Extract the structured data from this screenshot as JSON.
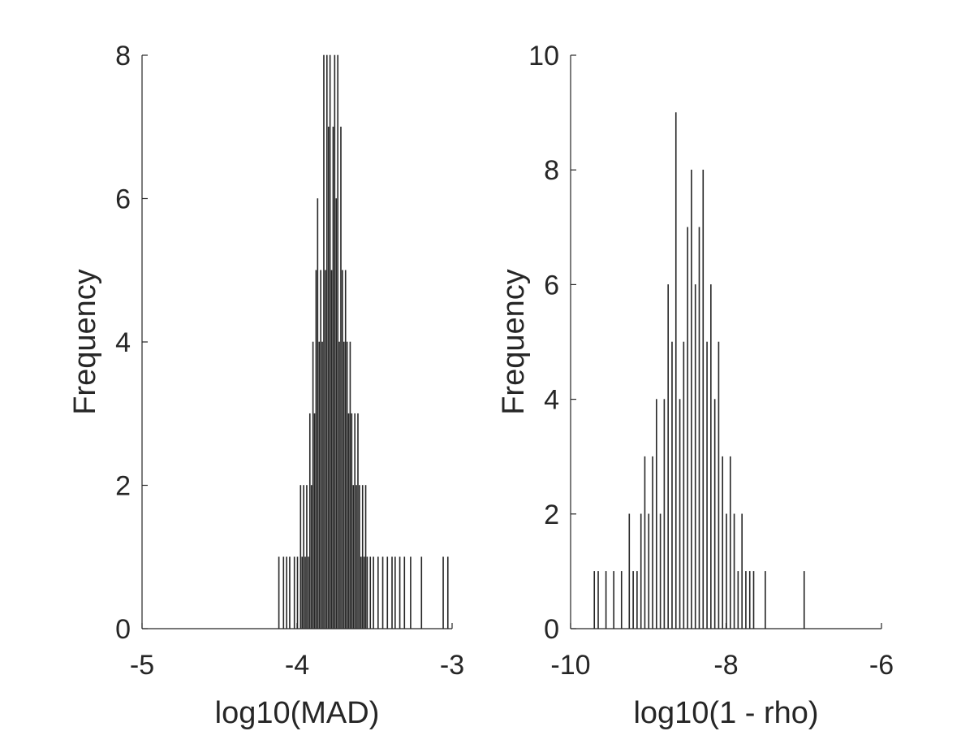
{
  "chart_data": [
    {
      "type": "histogram",
      "xlabel": "log10(MAD)",
      "ylabel": "Frequency",
      "xlim": [
        -5,
        -3
      ],
      "ylim": [
        0,
        8
      ],
      "xticks": [
        -5,
        -4,
        -3
      ],
      "yticks": [
        0,
        2,
        4,
        6,
        8
      ],
      "xtick_labels": [
        "-5",
        "-4",
        "-3"
      ],
      "ytick_labels": [
        "0",
        "2",
        "4",
        "6",
        "8"
      ],
      "bar_color": "#262626",
      "bin_width": 0.0017,
      "bins": [
        [
          -4.12,
          1
        ],
        [
          -4.09,
          1
        ],
        [
          -4.07,
          1
        ],
        [
          -4.05,
          1
        ],
        [
          -4.02,
          1
        ],
        [
          -4.0,
          1
        ],
        [
          -3.98,
          2
        ],
        [
          -3.97,
          1
        ],
        [
          -3.96,
          2
        ],
        [
          -3.95,
          1
        ],
        [
          -3.94,
          2
        ],
        [
          -3.93,
          1
        ],
        [
          -3.92,
          3
        ],
        [
          -3.91,
          2
        ],
        [
          -3.9,
          4
        ],
        [
          -3.89,
          3
        ],
        [
          -3.88,
          5
        ],
        [
          -3.87,
          6
        ],
        [
          -3.86,
          4
        ],
        [
          -3.85,
          5
        ],
        [
          -3.84,
          4
        ],
        [
          -3.83,
          8
        ],
        [
          -3.82,
          5
        ],
        [
          -3.81,
          8
        ],
        [
          -3.8,
          7
        ],
        [
          -3.79,
          8
        ],
        [
          -3.78,
          5
        ],
        [
          -3.77,
          7
        ],
        [
          -3.76,
          8
        ],
        [
          -3.75,
          6
        ],
        [
          -3.74,
          8
        ],
        [
          -3.73,
          4
        ],
        [
          -3.72,
          7
        ],
        [
          -3.71,
          5
        ],
        [
          -3.7,
          4
        ],
        [
          -3.69,
          5
        ],
        [
          -3.68,
          4
        ],
        [
          -3.67,
          3
        ],
        [
          -3.66,
          4
        ],
        [
          -3.65,
          3
        ],
        [
          -3.64,
          2
        ],
        [
          -3.63,
          3
        ],
        [
          -3.62,
          2
        ],
        [
          -3.61,
          3
        ],
        [
          -3.6,
          2
        ],
        [
          -3.59,
          1
        ],
        [
          -3.58,
          2
        ],
        [
          -3.57,
          1
        ],
        [
          -3.56,
          2
        ],
        [
          -3.55,
          1
        ],
        [
          -3.53,
          1
        ],
        [
          -3.51,
          1
        ],
        [
          -3.48,
          1
        ],
        [
          -3.45,
          1
        ],
        [
          -3.42,
          1
        ],
        [
          -3.39,
          1
        ],
        [
          -3.37,
          1
        ],
        [
          -3.34,
          1
        ],
        [
          -3.31,
          1
        ],
        [
          -3.27,
          1
        ],
        [
          -3.2,
          1
        ],
        [
          -3.06,
          1
        ],
        [
          -3.03,
          1
        ]
      ]
    },
    {
      "type": "histogram",
      "xlabel": "log10(1 - rho)",
      "ylabel": "Frequency",
      "xlim": [
        -10,
        -6
      ],
      "ylim": [
        0,
        10
      ],
      "xticks": [
        -10,
        -8,
        -6
      ],
      "yticks": [
        0,
        2,
        4,
        6,
        8,
        10
      ],
      "xtick_labels": [
        "-10",
        "-8",
        "-6"
      ],
      "ytick_labels": [
        "0",
        "2",
        "4",
        "6",
        "8",
        "10"
      ],
      "bar_color": "#262626",
      "bin_width": 0.0035,
      "bins": [
        [
          -9.7,
          1
        ],
        [
          -9.65,
          1
        ],
        [
          -9.55,
          1
        ],
        [
          -9.45,
          1
        ],
        [
          -9.35,
          1
        ],
        [
          -9.25,
          2
        ],
        [
          -9.2,
          1
        ],
        [
          -9.15,
          1
        ],
        [
          -9.1,
          2
        ],
        [
          -9.05,
          3
        ],
        [
          -9.0,
          2
        ],
        [
          -8.95,
          3
        ],
        [
          -8.9,
          4
        ],
        [
          -8.85,
          2
        ],
        [
          -8.8,
          4
        ],
        [
          -8.75,
          6
        ],
        [
          -8.7,
          5
        ],
        [
          -8.65,
          9
        ],
        [
          -8.6,
          4
        ],
        [
          -8.55,
          5
        ],
        [
          -8.5,
          7
        ],
        [
          -8.45,
          8
        ],
        [
          -8.4,
          6
        ],
        [
          -8.35,
          7
        ],
        [
          -8.3,
          8
        ],
        [
          -8.25,
          5
        ],
        [
          -8.2,
          6
        ],
        [
          -8.15,
          4
        ],
        [
          -8.1,
          5
        ],
        [
          -8.05,
          3
        ],
        [
          -8.0,
          2
        ],
        [
          -7.95,
          3
        ],
        [
          -7.9,
          2
        ],
        [
          -7.85,
          1
        ],
        [
          -7.8,
          2
        ],
        [
          -7.75,
          1
        ],
        [
          -7.7,
          1
        ],
        [
          -7.65,
          1
        ],
        [
          -7.5,
          1
        ],
        [
          -7.0,
          1
        ]
      ]
    }
  ]
}
